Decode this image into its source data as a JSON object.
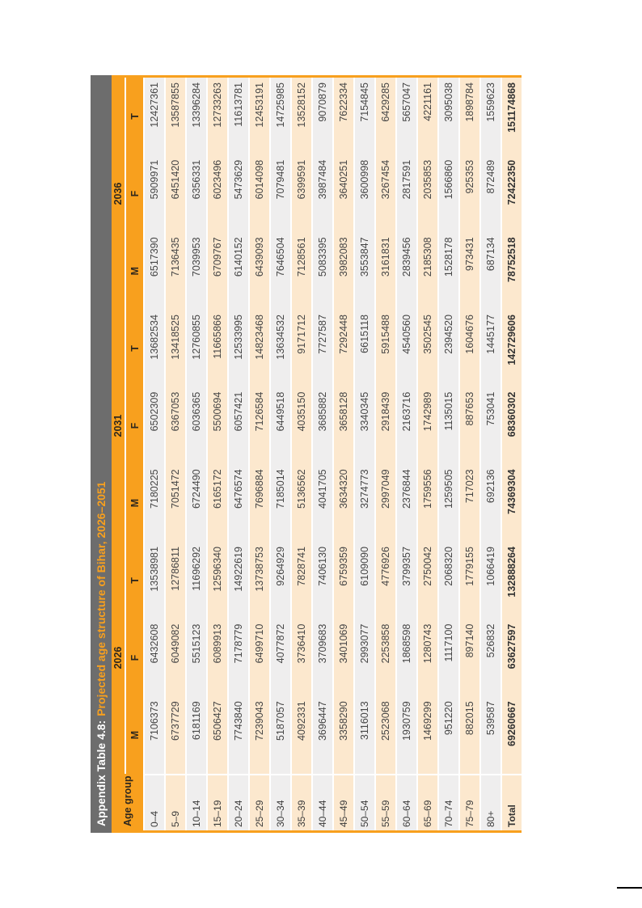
{
  "document": {
    "title_prefix": "Appendix Table 4.8:",
    "title_main": "Projected age structure of Bihar, 2026–2051"
  },
  "table": {
    "header": {
      "age_group_label": "Age group",
      "years": [
        "2026",
        "2031",
        "2036"
      ],
      "sub_columns": [
        "M",
        "F",
        "T"
      ]
    },
    "rows": [
      {
        "age": "0–4",
        "values": [
          7106373,
          6432608,
          13538981,
          7180225,
          6502309,
          13682534,
          6517390,
          5909971,
          12427361
        ]
      },
      {
        "age": "5–9",
        "values": [
          6737729,
          6049082,
          12786811,
          7051472,
          6367053,
          13418525,
          7136435,
          6451420,
          13587855
        ]
      },
      {
        "age": "10–14",
        "values": [
          6181169,
          5515123,
          11696292,
          6724490,
          6036365,
          12760855,
          7039953,
          6356331,
          13396284
        ]
      },
      {
        "age": "15–19",
        "values": [
          6506427,
          6089913,
          12596340,
          6165172,
          5500694,
          11665866,
          6709767,
          6023496,
          12733263
        ]
      },
      {
        "age": "20–24",
        "values": [
          7743840,
          7178779,
          14922619,
          6476574,
          6057421,
          12533995,
          6140152,
          5473629,
          11613781
        ]
      },
      {
        "age": "25–29",
        "values": [
          7239043,
          6499710,
          13738753,
          7696884,
          7126584,
          14823468,
          6439093,
          6014098,
          12453191
        ]
      },
      {
        "age": "30–34",
        "values": [
          5187057,
          4077872,
          9264929,
          7185014,
          6449518,
          13634532,
          7646504,
          7079481,
          14725985
        ]
      },
      {
        "age": "35–39",
        "values": [
          4092331,
          3736410,
          7828741,
          5136562,
          4035150,
          9171712,
          7128561,
          6399591,
          13528152
        ]
      },
      {
        "age": "40–44",
        "values": [
          3696447,
          3709683,
          7406130,
          4041705,
          3685882,
          7727587,
          5083395,
          3987484,
          9070879
        ]
      },
      {
        "age": "45–49",
        "values": [
          3358290,
          3401069,
          6759359,
          3634320,
          3658128,
          7292448,
          3982083,
          3640251,
          7622334
        ]
      },
      {
        "age": "50–54",
        "values": [
          3116013,
          2993077,
          6109090,
          3274773,
          3340345,
          6615118,
          3553847,
          3600998,
          7154845
        ]
      },
      {
        "age": "55–59",
        "values": [
          2523068,
          2253858,
          4776926,
          2997049,
          2918439,
          5915488,
          3161831,
          3267454,
          6429285
        ]
      },
      {
        "age": "60–64",
        "values": [
          1930759,
          1868598,
          3799357,
          2376844,
          2163716,
          4540560,
          2839456,
          2817591,
          5657047
        ]
      },
      {
        "age": "65–69",
        "values": [
          1469299,
          1280743,
          2750042,
          1759556,
          1742989,
          3502545,
          2185308,
          2035853,
          4221161
        ]
      },
      {
        "age": "70–74",
        "values": [
          951220,
          1117100,
          2068320,
          1259505,
          1135015,
          2394520,
          1528178,
          1566860,
          3095038
        ]
      },
      {
        "age": "75–79",
        "values": [
          882015,
          897140,
          1779155,
          717023,
          887653,
          1604676,
          973431,
          925353,
          1898784
        ]
      },
      {
        "age": "80+",
        "values": [
          539587,
          526832,
          1066419,
          692136,
          753041,
          1445177,
          687134,
          872489,
          1559623
        ]
      },
      {
        "age": "Total",
        "bold": true,
        "values": [
          69260667,
          63627597,
          132888264,
          74369304,
          68360302,
          142729606,
          78752518,
          72422350,
          151174868
        ]
      }
    ]
  },
  "colors": {
    "accent_orange": "#f8a01e",
    "title_bar_gray": "#6d6d6d",
    "row_gray": "#efeeee",
    "row_peach": "#fce8ce"
  }
}
